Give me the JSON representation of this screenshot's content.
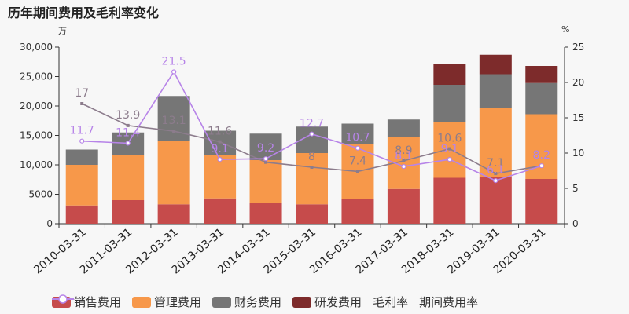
{
  "title": "历年期间费用及毛利率变化",
  "y_left_unit": "万",
  "y_right_unit": "%",
  "legend": {
    "sales": "销售费用",
    "admin": "管理费用",
    "finance": "财务费用",
    "rd": "研发费用",
    "gross_margin": "毛利率",
    "expense_ratio": "期间费用率"
  },
  "chart_data": {
    "type": "bar",
    "stacked": true,
    "categories": [
      "2010-03-31",
      "2011-03-31",
      "2012-03-31",
      "2013-03-31",
      "2014-03-31",
      "2015-03-31",
      "2016-03-31",
      "2017-03-31",
      "2018-03-31",
      "2019-03-31",
      "2020-03-31"
    ],
    "series": [
      {
        "name": "销售费用",
        "type": "bar",
        "axis": "left",
        "color": "#c64b4b",
        "values": [
          3100,
          4000,
          3300,
          4300,
          3500,
          3300,
          4200,
          5900,
          7800,
          7900,
          7600
        ]
      },
      {
        "name": "管理费用",
        "type": "bar",
        "axis": "left",
        "color": "#f7984a",
        "values": [
          6900,
          7700,
          10800,
          7300,
          7300,
          8700,
          9300,
          8900,
          9500,
          11800,
          11000
        ]
      },
      {
        "name": "财务费用",
        "type": "bar",
        "axis": "left",
        "color": "#767676",
        "values": [
          2600,
          3800,
          7600,
          4200,
          4500,
          4500,
          3500,
          2900,
          6300,
          5700,
          5300
        ]
      },
      {
        "name": "研发费用",
        "type": "bar",
        "axis": "left",
        "color": "#7d2b2b",
        "values": [
          0,
          0,
          0,
          0,
          0,
          0,
          0,
          0,
          3600,
          3300,
          2900
        ]
      },
      {
        "name": "毛利率",
        "type": "line",
        "axis": "right",
        "color": "#8c7c8c",
        "values": [
          17,
          13.9,
          13.1,
          11.6,
          8.7,
          8,
          7.4,
          8.9,
          10.6,
          7.1,
          8.2
        ],
        "labels": [
          "17",
          "13.9",
          "13.1",
          "11.6",
          "",
          "8",
          "7.4",
          "8.9",
          "10.6",
          "7.1",
          "8.2"
        ]
      },
      {
        "name": "期间费用率",
        "type": "line",
        "axis": "right",
        "color": "#b784e8",
        "values": [
          11.7,
          11.4,
          21.5,
          9.1,
          9.2,
          12.7,
          10.7,
          8.1,
          9.1,
          6.1,
          8.2
        ],
        "labels": [
          "11.7",
          "11.4",
          "21.5",
          "9.1",
          "9.2",
          "12.7",
          "10.7",
          "8.1",
          "9.1",
          "6.1",
          "8.2"
        ]
      }
    ],
    "y_left": {
      "min": 0,
      "max": 30000,
      "ticks": [
        "0",
        "5000",
        "10,000",
        "15,000",
        "20,000",
        "25,000",
        "30,000"
      ],
      "tick_values": [
        0,
        5000,
        10000,
        15000,
        20000,
        25000,
        30000
      ]
    },
    "y_right": {
      "min": 0,
      "max": 25,
      "ticks": [
        "0",
        "5",
        "10",
        "15",
        "20",
        "25"
      ],
      "tick_values": [
        0,
        5,
        10,
        15,
        20,
        25
      ]
    },
    "grid": false,
    "legend_position": "bottom"
  }
}
